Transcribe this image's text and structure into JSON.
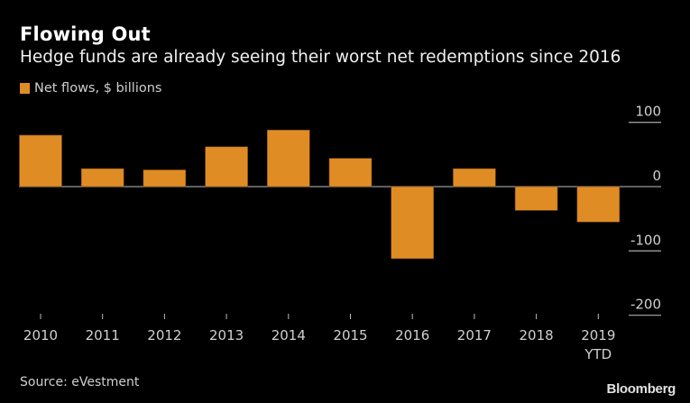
{
  "header": {
    "title": "Flowing Out",
    "subtitle": "Hedge funds are already seeing their worst net redemptions since 2016"
  },
  "legend": {
    "label": "Net flows, $ billions",
    "color": "#e08c25"
  },
  "footer": {
    "source": "Source: eVestment",
    "brand": "Bloomberg"
  },
  "chart_data": {
    "type": "bar",
    "title": "Flowing Out",
    "subtitle": "Hedge funds are already seeing their worst net redemptions since 2016",
    "xlabel": "",
    "ylabel": "Net flows, $ billions",
    "categories": [
      "2010",
      "2011",
      "2012",
      "2013",
      "2014",
      "2015",
      "2016",
      "2017",
      "2018",
      "2019 YTD"
    ],
    "category_labels": [
      [
        "2010"
      ],
      [
        "2011"
      ],
      [
        "2012"
      ],
      [
        "2013"
      ],
      [
        "2014"
      ],
      [
        "2015"
      ],
      [
        "2016"
      ],
      [
        "2017"
      ],
      [
        "2018"
      ],
      [
        "2019",
        "YTD"
      ]
    ],
    "series": [
      {
        "name": "Net flows, $ billions",
        "color": "#e08c25",
        "values": [
          80,
          28,
          26,
          62,
          88,
          44,
          -112,
          28,
          -37,
          -55
        ]
      }
    ],
    "ylim": [
      -200,
      100
    ],
    "yticks": [
      100,
      0,
      -100,
      -200
    ],
    "ytick_labels": [
      "100",
      "0",
      "-100",
      "-200"
    ],
    "y_axis_side": "right",
    "grid": false,
    "legend_position": "top-left"
  }
}
